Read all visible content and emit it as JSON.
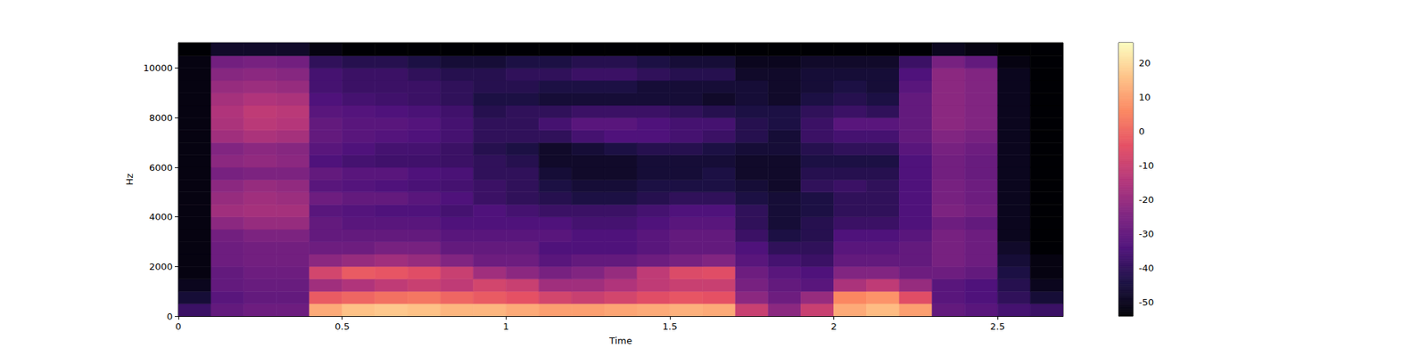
{
  "chart_data": {
    "type": "heatmap",
    "xlabel": "Time",
    "ylabel": "Hz",
    "xlim": [
      0,
      2.7
    ],
    "ylim": [
      0,
      11025
    ],
    "xticks": [
      0,
      0.5,
      1,
      1.5,
      2,
      2.5
    ],
    "yticks": [
      0,
      2000,
      4000,
      6000,
      8000,
      10000
    ],
    "x_edges": [
      0,
      0.1,
      0.2,
      0.3,
      0.4,
      0.5,
      0.6,
      0.7,
      0.8,
      0.9,
      1.0,
      1.1,
      1.2,
      1.3,
      1.4,
      1.5,
      1.6,
      1.7,
      1.8,
      1.9,
      2.0,
      2.1,
      2.2,
      2.3,
      2.4,
      2.5,
      2.6,
      2.7
    ],
    "y_edges": [
      0,
      500,
      1000,
      1500,
      2000,
      2500,
      3000,
      3500,
      4000,
      4500,
      5000,
      5500,
      6000,
      6500,
      7000,
      7500,
      8000,
      8500,
      9000,
      9500,
      10000,
      10500,
      11025
    ],
    "cells": [
      [
        -38,
        -46,
        -50,
        -52,
        -52,
        -52,
        -52,
        -52,
        -52,
        -52,
        -52,
        -52,
        -52,
        -52,
        -52,
        -52,
        -52,
        -52,
        -52,
        -52,
        -52,
        -54
      ],
      [
        -30,
        -32,
        -30,
        -30,
        -28,
        -28,
        -27,
        -22,
        -18,
        -20,
        -22,
        -26,
        -22,
        -24,
        -18,
        -16,
        -15,
        -17,
        -20,
        -23,
        -27,
        -48
      ],
      [
        -28,
        -30,
        -29,
        -28,
        -27,
        -27,
        -25,
        -20,
        -17,
        -18,
        -20,
        -25,
        -21,
        -22,
        -16,
        -13,
        -12,
        -15,
        -19,
        -22,
        -26,
        -48
      ],
      [
        -28,
        -30,
        -29,
        -28,
        -27,
        -27,
        -25,
        -20,
        -17,
        -19,
        -21,
        -25,
        -22,
        -23,
        -17,
        -14,
        -13,
        -16,
        -20,
        -23,
        -27,
        -48
      ],
      [
        12,
        -2,
        -18,
        -8,
        -22,
        -28,
        -30,
        -30,
        -32,
        -28,
        -32,
        -30,
        -34,
        -32,
        -30,
        -30,
        -32,
        -34,
        -36,
        -36,
        -40,
        -52
      ],
      [
        16,
        0,
        -15,
        -2,
        -20,
        -28,
        -30,
        -32,
        -33,
        -30,
        -33,
        -32,
        -36,
        -34,
        -32,
        -32,
        -33,
        -36,
        -38,
        -38,
        -42,
        -54
      ],
      [
        17,
        2,
        -12,
        -3,
        -18,
        -26,
        -30,
        -32,
        -34,
        -30,
        -34,
        -32,
        -37,
        -36,
        -33,
        -32,
        -34,
        -37,
        -38,
        -38,
        -42,
        -54
      ],
      [
        16,
        3,
        -10,
        -5,
        -20,
        -26,
        -30,
        -32,
        -34,
        -32,
        -35,
        -34,
        -37,
        -36,
        -34,
        -33,
        -35,
        -38,
        -38,
        -40,
        -44,
        -54
      ],
      [
        14,
        0,
        -12,
        -10,
        -24,
        -30,
        -32,
        -34,
        -36,
        -34,
        -36,
        -35,
        -38,
        -38,
        -36,
        -36,
        -37,
        -40,
        -40,
        -42,
        -46,
        -54
      ],
      [
        14,
        -2,
        -8,
        -18,
        -28,
        -30,
        -32,
        -34,
        -34,
        -38,
        -38,
        -40,
        -40,
        -42,
        -40,
        -40,
        -42,
        -44,
        -42,
        -42,
        -46,
        -54
      ],
      [
        12,
        -4,
        -10,
        -22,
        -28,
        -30,
        -32,
        -34,
        -36,
        -40,
        -40,
        -40,
        -42,
        -44,
        -40,
        -40,
        -40,
        -44,
        -42,
        -40,
        -44,
        -54
      ],
      [
        10,
        -8,
        -18,
        -26,
        -32,
        -34,
        -32,
        -34,
        -38,
        -42,
        -44,
        -46,
        -48,
        -48,
        -40,
        -36,
        -40,
        -46,
        -44,
        -40,
        -44,
        -54
      ],
      [
        10,
        -10,
        -18,
        -24,
        -30,
        -34,
        -34,
        -36,
        -38,
        -44,
        -46,
        -48,
        -48,
        -46,
        -36,
        -32,
        -38,
        -46,
        -44,
        -38,
        -42,
        -54
      ],
      [
        11,
        -8,
        -15,
        -20,
        -30,
        -34,
        -34,
        -36,
        -38,
        -44,
        -46,
        -48,
        -48,
        -44,
        -34,
        -32,
        -38,
        -46,
        -44,
        -38,
        -42,
        -54
      ],
      [
        12,
        -5,
        -12,
        -12,
        -28,
        -32,
        -32,
        -34,
        -36,
        -42,
        -44,
        -46,
        -46,
        -42,
        -34,
        -34,
        -38,
        -46,
        -46,
        -40,
        -44,
        -54
      ],
      [
        13,
        -3,
        -10,
        -6,
        -26,
        -30,
        -30,
        -32,
        -34,
        -40,
        -44,
        -46,
        -46,
        -42,
        -36,
        -36,
        -40,
        -46,
        -46,
        -42,
        -46,
        -54
      ],
      [
        12,
        -4,
        -10,
        -5,
        -24,
        -30,
        -30,
        -32,
        -34,
        -40,
        -44,
        -44,
        -46,
        -44,
        -38,
        -36,
        -42,
        -48,
        -46,
        -42,
        -46,
        -54
      ],
      [
        -10,
        -22,
        -26,
        -28,
        -32,
        -34,
        -38,
        -40,
        -40,
        -44,
        -46,
        -48,
        -48,
        -46,
        -42,
        -42,
        -44,
        -46,
        -46,
        -48,
        -50,
        -54
      ],
      [
        -22,
        -28,
        -30,
        -32,
        -36,
        -40,
        -44,
        -46,
        -46,
        -46,
        -48,
        -48,
        -48,
        -46,
        -46,
        -44,
        -44,
        -48,
        -48,
        -48,
        -50,
        -54
      ],
      [
        -10,
        -20,
        -32,
        -34,
        -38,
        -40,
        -42,
        -42,
        -44,
        -44,
        -40,
        -42,
        -44,
        -42,
        -38,
        -38,
        -40,
        -44,
        -46,
        -46,
        -48,
        -54
      ],
      [
        12,
        6,
        -16,
        -24,
        -30,
        -32,
        -34,
        -38,
        -40,
        -40,
        -38,
        -42,
        -44,
        -40,
        -36,
        -32,
        -38,
        -42,
        -44,
        -46,
        -48,
        -54
      ],
      [
        15,
        8,
        -12,
        -24,
        -30,
        -32,
        -34,
        -38,
        -40,
        -40,
        -40,
        -42,
        -44,
        -40,
        -36,
        -32,
        -40,
        -44,
        -46,
        -46,
        -48,
        -54
      ],
      [
        10,
        -5,
        -20,
        -28,
        -30,
        -30,
        -32,
        -34,
        -34,
        -34,
        -34,
        -34,
        -34,
        -32,
        -30,
        -30,
        -30,
        -30,
        -32,
        -34,
        -38,
        -54
      ],
      [
        -30,
        -32,
        -32,
        -28,
        -26,
        -26,
        -26,
        -28,
        -25,
        -26,
        -26,
        -27,
        -27,
        -26,
        -24,
        -22,
        -22,
        -22,
        -22,
        -22,
        -26,
        -50
      ],
      [
        -32,
        -34,
        -34,
        -30,
        -28,
        -28,
        -28,
        -30,
        -27,
        -28,
        -28,
        -29,
        -29,
        -28,
        -26,
        -24,
        -24,
        -24,
        -24,
        -24,
        -30,
        -52
      ],
      [
        -36,
        -40,
        -42,
        -44,
        -46,
        -48,
        -50,
        -50,
        -50,
        -50,
        -50,
        -50,
        -50,
        -50,
        -50,
        -50,
        -50,
        -50,
        -50,
        -50,
        -52,
        -54
      ],
      [
        -38,
        -46,
        -50,
        -52,
        -52,
        -54,
        -54,
        -54,
        -54,
        -54,
        -54,
        -54,
        -54,
        -54,
        -54,
        -54,
        -54,
        -54,
        -54,
        -54,
        -54,
        -54
      ]
    ],
    "colorbar": {
      "range": [
        -54,
        26
      ],
      "ticks": [
        -50,
        -40,
        -30,
        -20,
        -10,
        0,
        10,
        20
      ]
    }
  }
}
